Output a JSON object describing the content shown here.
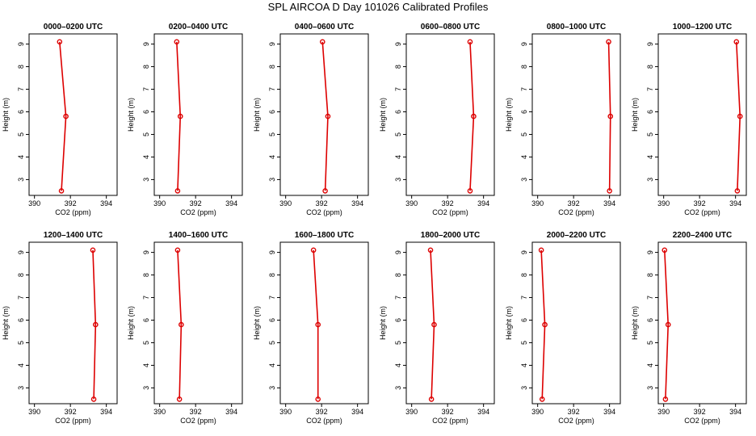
{
  "title": "SPL AIRCOA D  Day 101026  Calibrated Profiles",
  "colors": {
    "series": "#dd0000",
    "axis": "#000000",
    "background": "#ffffff"
  },
  "chart_data": [
    {
      "type": "line",
      "title": "0000–0200 UTC",
      "xlabel": "CO2 (ppm)",
      "ylabel": "Height (m)",
      "xlim": [
        389.7,
        394.6
      ],
      "ylim": [
        2.3,
        9.45
      ],
      "xticks": [
        390,
        392,
        394
      ],
      "yticks": [
        3,
        4,
        5,
        6,
        7,
        8,
        9
      ],
      "x": [
        391.5,
        391.75,
        391.4
      ],
      "y": [
        2.5,
        5.8,
        9.1
      ]
    },
    {
      "type": "line",
      "title": "0200–0400 UTC",
      "xlabel": "CO2 (ppm)",
      "ylabel": "Height (m)",
      "xlim": [
        389.7,
        394.6
      ],
      "ylim": [
        2.3,
        9.45
      ],
      "xticks": [
        390,
        392,
        394
      ],
      "yticks": [
        3,
        4,
        5,
        6,
        7,
        8,
        9
      ],
      "x": [
        391.0,
        391.15,
        390.95
      ],
      "y": [
        2.5,
        5.8,
        9.1
      ]
    },
    {
      "type": "line",
      "title": "0400–0600 UTC",
      "xlabel": "CO2 (ppm)",
      "ylabel": "Height (m)",
      "xlim": [
        389.7,
        394.6
      ],
      "ylim": [
        2.3,
        9.45
      ],
      "xticks": [
        390,
        392,
        394
      ],
      "yticks": [
        3,
        4,
        5,
        6,
        7,
        8,
        9
      ],
      "x": [
        392.2,
        392.35,
        392.05
      ],
      "y": [
        2.5,
        5.8,
        9.1
      ]
    },
    {
      "type": "line",
      "title": "0600–0800 UTC",
      "xlabel": "CO2 (ppm)",
      "ylabel": "Height (m)",
      "xlim": [
        389.7,
        394.6
      ],
      "ylim": [
        2.3,
        9.45
      ],
      "xticks": [
        390,
        392,
        394
      ],
      "yticks": [
        3,
        4,
        5,
        6,
        7,
        8,
        9
      ],
      "x": [
        393.25,
        393.45,
        393.25
      ],
      "y": [
        2.5,
        5.8,
        9.1
      ]
    },
    {
      "type": "line",
      "title": "0800–1000 UTC",
      "xlabel": "CO2 (ppm)",
      "ylabel": "Height (m)",
      "xlim": [
        389.7,
        394.6
      ],
      "ylim": [
        2.3,
        9.45
      ],
      "xticks": [
        390,
        392,
        394
      ],
      "yticks": [
        3,
        4,
        5,
        6,
        7,
        8,
        9
      ],
      "x": [
        394.0,
        394.05,
        393.95
      ],
      "y": [
        2.5,
        5.8,
        9.1
      ]
    },
    {
      "type": "line",
      "title": "1000–1200 UTC",
      "xlabel": "CO2 (ppm)",
      "ylabel": "Height (m)",
      "xlim": [
        389.7,
        394.6
      ],
      "ylim": [
        2.3,
        9.45
      ],
      "xticks": [
        390,
        392,
        394
      ],
      "yticks": [
        3,
        4,
        5,
        6,
        7,
        8,
        9
      ],
      "x": [
        394.1,
        394.25,
        394.05
      ],
      "y": [
        2.5,
        5.8,
        9.1
      ]
    },
    {
      "type": "line",
      "title": "1200–1400 UTC",
      "xlabel": "CO2 (ppm)",
      "ylabel": "Height (m)",
      "xlim": [
        389.7,
        394.6
      ],
      "ylim": [
        2.3,
        9.45
      ],
      "xticks": [
        390,
        392,
        394
      ],
      "yticks": [
        3,
        4,
        5,
        6,
        7,
        8,
        9
      ],
      "x": [
        393.3,
        393.4,
        393.25
      ],
      "y": [
        2.5,
        5.8,
        9.1
      ]
    },
    {
      "type": "line",
      "title": "1400–1600 UTC",
      "xlabel": "CO2 (ppm)",
      "ylabel": "Height (m)",
      "xlim": [
        389.7,
        394.6
      ],
      "ylim": [
        2.3,
        9.45
      ],
      "xticks": [
        390,
        392,
        394
      ],
      "yticks": [
        3,
        4,
        5,
        6,
        7,
        8,
        9
      ],
      "x": [
        391.1,
        391.2,
        391.0
      ],
      "y": [
        2.5,
        5.8,
        9.1
      ]
    },
    {
      "type": "line",
      "title": "1600–1800 UTC",
      "xlabel": "CO2 (ppm)",
      "ylabel": "Height (m)",
      "xlim": [
        389.7,
        394.6
      ],
      "ylim": [
        2.3,
        9.45
      ],
      "xticks": [
        390,
        392,
        394
      ],
      "yticks": [
        3,
        4,
        5,
        6,
        7,
        8,
        9
      ],
      "x": [
        391.8,
        391.8,
        391.55
      ],
      "y": [
        2.5,
        5.8,
        9.1
      ]
    },
    {
      "type": "line",
      "title": "1800–2000 UTC",
      "xlabel": "CO2 (ppm)",
      "ylabel": "Height (m)",
      "xlim": [
        389.7,
        394.6
      ],
      "ylim": [
        2.3,
        9.45
      ],
      "xticks": [
        390,
        392,
        394
      ],
      "yticks": [
        3,
        4,
        5,
        6,
        7,
        8,
        9
      ],
      "x": [
        391.1,
        391.25,
        391.05
      ],
      "y": [
        2.5,
        5.8,
        9.1
      ]
    },
    {
      "type": "line",
      "title": "2000–2200 UTC",
      "xlabel": "CO2 (ppm)",
      "ylabel": "Height (m)",
      "xlim": [
        389.7,
        394.6
      ],
      "ylim": [
        2.3,
        9.45
      ],
      "xticks": [
        390,
        392,
        394
      ],
      "yticks": [
        3,
        4,
        5,
        6,
        7,
        8,
        9
      ],
      "x": [
        390.25,
        390.4,
        390.2
      ],
      "y": [
        2.5,
        5.8,
        9.1
      ]
    },
    {
      "type": "line",
      "title": "2200–2400 UTC",
      "xlabel": "CO2 (ppm)",
      "ylabel": "Height (m)",
      "xlim": [
        389.7,
        394.6
      ],
      "ylim": [
        2.3,
        9.45
      ],
      "xticks": [
        390,
        392,
        394
      ],
      "yticks": [
        3,
        4,
        5,
        6,
        7,
        8,
        9
      ],
      "x": [
        390.1,
        390.25,
        390.05
      ],
      "y": [
        2.5,
        5.8,
        9.1
      ]
    }
  ]
}
